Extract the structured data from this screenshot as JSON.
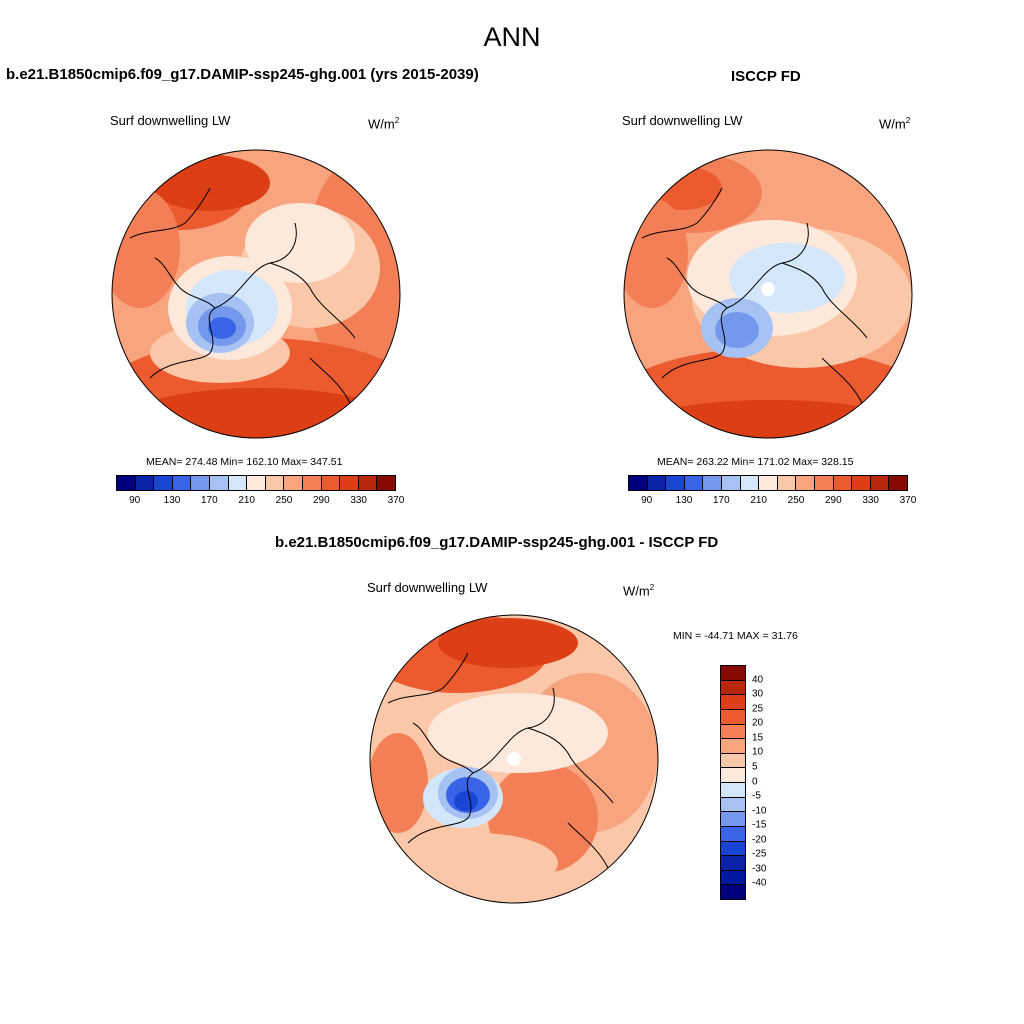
{
  "figure": {
    "title": "ANN"
  },
  "panels": {
    "model": {
      "case_title": "b.e21.B1850cmip6.f09_g17.DAMIP-ssp245-ghg.001 (yrs 2015-2039)",
      "variable": "Surf downwelling LW",
      "units_base": "W/m",
      "units_exp": "2",
      "stats": "MEAN= 274.48  Min= 162.10  Max= 347.51",
      "variant": "model"
    },
    "obs": {
      "case_title": "ISCCP FD",
      "variable": "Surf downwelling LW",
      "units_base": "W/m",
      "units_exp": "2",
      "stats": "MEAN= 263.22  Min= 171.02  Max= 328.15",
      "variant": "obs"
    },
    "diff": {
      "case_title": "b.e21.B1850cmip6.f09_g17.DAMIP-ssp245-ghg.001 - ISCCP FD",
      "variable": "Surf downwelling LW",
      "units_base": "W/m",
      "units_exp": "2",
      "stats": "MIN = -44.71 MAX =  31.76",
      "variant": "diff"
    }
  },
  "colorbars": {
    "main": {
      "colors": [
        "#00007f",
        "#0a23a8",
        "#1a45d4",
        "#3a64e8",
        "#7398ec",
        "#a6c2f2",
        "#d4e6fa",
        "#fde9dc",
        "#fbc7a9",
        "#f8a47e",
        "#f37f56",
        "#ec5a2f",
        "#dc3e16",
        "#b8260b",
        "#870a02"
      ],
      "tick_labels": [
        "90",
        "130",
        "170",
        "210",
        "250",
        "290",
        "330",
        "370"
      ]
    },
    "diff": {
      "colors": [
        "#870a02",
        "#b8260b",
        "#dc3e16",
        "#ec5a2f",
        "#f37f56",
        "#f8a47e",
        "#fbc7a9",
        "#fde9dc",
        "#d4e6fa",
        "#a6c2f2",
        "#7398ec",
        "#3a64e8",
        "#1a45d4",
        "#0a23a8",
        "#0019a0",
        "#00007f"
      ],
      "tick_labels": [
        "40",
        "30",
        "25",
        "20",
        "15",
        "10",
        "5",
        "0",
        "-5",
        "-10",
        "-15",
        "-20",
        "-25",
        "-30",
        "-40"
      ]
    }
  },
  "chart_data": [
    {
      "type": "heatmap",
      "title": "Surf downwelling LW",
      "subtitle": "b.e21.B1850cmip6.f09_g17.DAMIP-ssp245-ghg.001 (yrs 2015-2039)",
      "units": "W/m2",
      "projection": "north polar stereographic",
      "stats": {
        "mean": 274.48,
        "min": 162.1,
        "max": 347.51
      },
      "levels": [
        90,
        130,
        170,
        210,
        250,
        290,
        330,
        370
      ]
    },
    {
      "type": "heatmap",
      "title": "Surf downwelling LW",
      "subtitle": "ISCCP FD",
      "units": "W/m2",
      "projection": "north polar stereographic",
      "stats": {
        "mean": 263.22,
        "min": 171.02,
        "max": 328.15
      },
      "levels": [
        90,
        130,
        170,
        210,
        250,
        290,
        330,
        370
      ]
    },
    {
      "type": "heatmap",
      "title": "Surf downwelling LW",
      "subtitle": "b.e21.B1850cmip6.f09_g17.DAMIP-ssp245-ghg.001 - ISCCP FD",
      "units": "W/m2",
      "projection": "north polar stereographic",
      "stats": {
        "min": -44.71,
        "max": 31.76
      },
      "levels": [
        40,
        30,
        25,
        20,
        15,
        10,
        5,
        0,
        -5,
        -10,
        -15,
        -20,
        -25,
        -30,
        -40
      ]
    }
  ]
}
